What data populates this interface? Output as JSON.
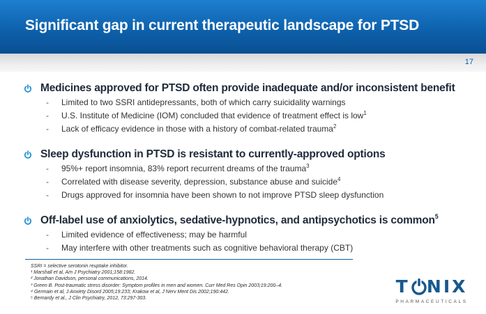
{
  "header": {
    "title": "Significant gap in current therapeutic landscape for PTSD"
  },
  "page_number": "17",
  "sections": [
    {
      "heading": "Medicines approved for PTSD often provide inadequate and/or inconsistent benefit",
      "heading_sup": "",
      "items": [
        {
          "text": "Limited to two SSRI antidepressants, both of which carry suicidality warnings",
          "sup": ""
        },
        {
          "text": "U.S. Institute of Medicine (IOM) concluded that evidence of treatment effect is low",
          "sup": "1"
        },
        {
          "text": "Lack of efficacy evidence in those with a history of combat-related trauma",
          "sup": "2"
        }
      ]
    },
    {
      "heading": "Sleep dysfunction in PTSD is resistant to currently-approved options",
      "heading_sup": "",
      "items": [
        {
          "text": "95%+ report insomnia, 83% report recurrent dreams of the trauma",
          "sup": "3"
        },
        {
          "text": "Correlated with disease severity, depression, substance abuse and suicide",
          "sup": "4"
        },
        {
          "text": "Drugs approved for insomnia have been shown to not improve PTSD sleep dysfunction",
          "sup": ""
        }
      ]
    },
    {
      "heading": "Off-label use of anxiolytics, sedative-hypnotics, and antipsychotics is common",
      "heading_sup": "5",
      "items": [
        {
          "text": "Limited evidence of effectiveness; may be harmful",
          "sup": ""
        },
        {
          "text": "May interfere with other treatments such as cognitive behavioral therapy (CBT)",
          "sup": ""
        }
      ]
    }
  ],
  "footnotes": [
    "SSRI = selective serotonin reuptake inhibitor.",
    "¹ Marshall et al, Am J Psychiatry 2001;158:1982.",
    "² Jonathan Davidson, personal communications, 2014.",
    "³ Green B. Post-traumatic stress disorder: Symptom profiles in men and women. Curr Med Res Opin 2003;19:200–4.",
    "⁴ Germain et al, J Anxiety Disord 2005;19:233; Krakow et al, J Nerv Ment Dis 2002;190:442.",
    "⁵ Bernardy et al., J Clin Psychiatry, 2012, 73:297-303."
  ],
  "logo": {
    "word": "TONIX",
    "subtitle": "PHARMACEUTICALS"
  },
  "colors": {
    "brand_blue": "#0d5fa9",
    "bullet_icon": "#1b8fd6",
    "logo_blue": "#16598f"
  },
  "icons": {
    "bullet": "power-icon"
  }
}
